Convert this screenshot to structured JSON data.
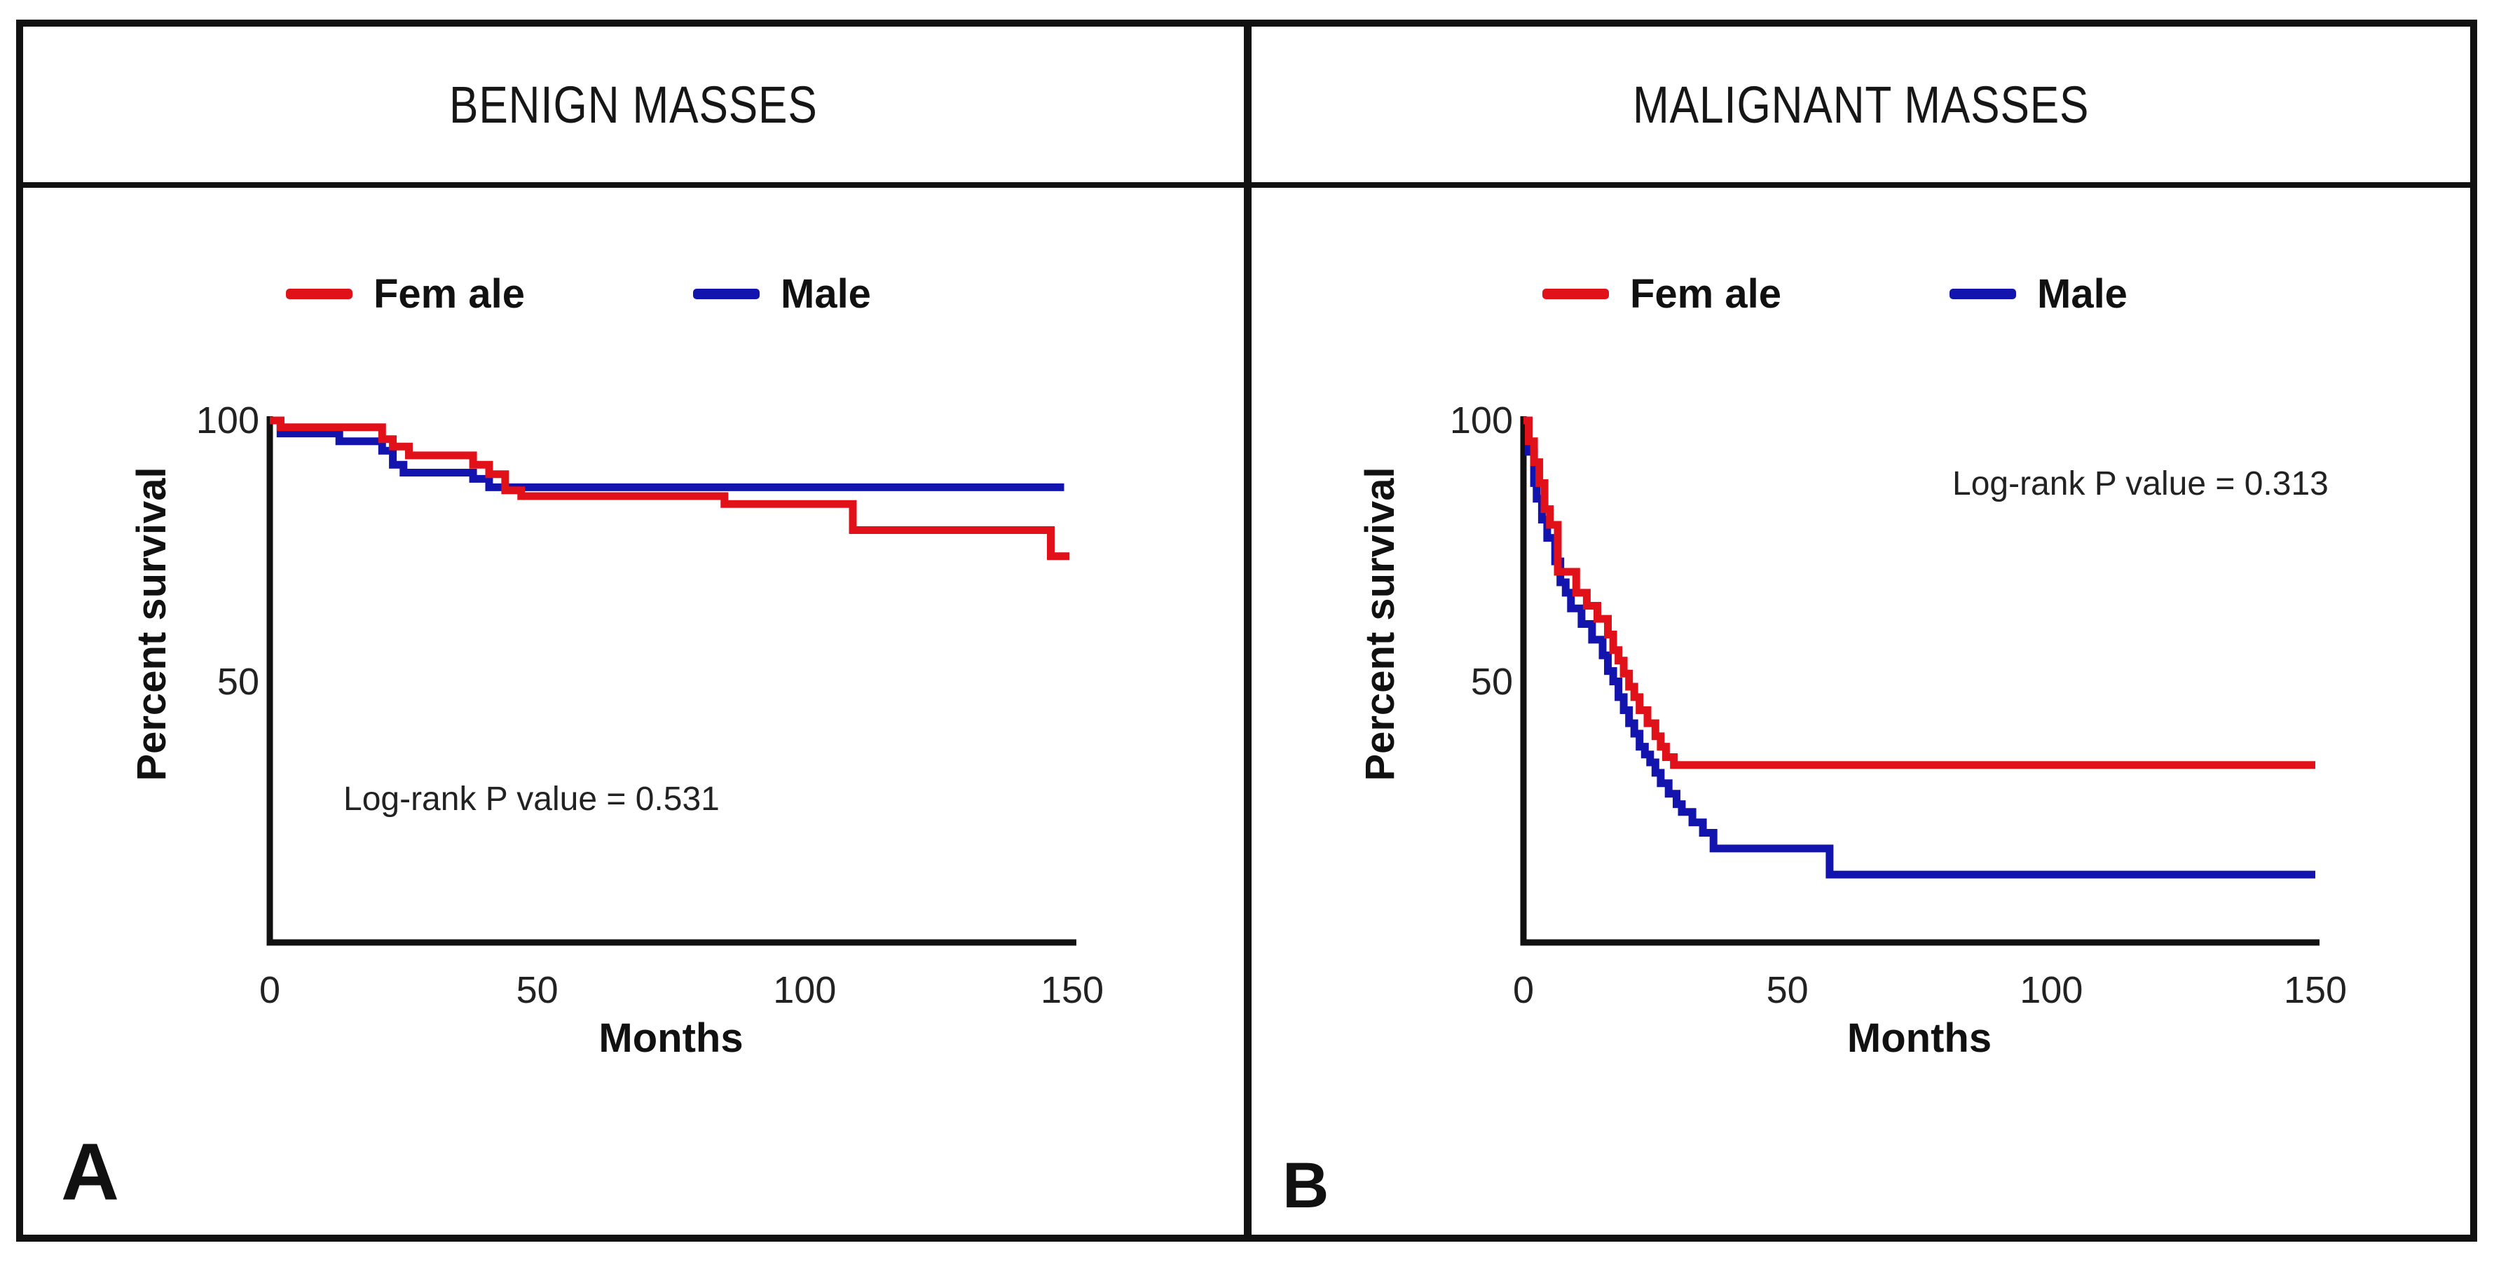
{
  "figure": {
    "type": "kaplan-meier-survival-figure",
    "background": "#ffffff",
    "border_color": "#111111",
    "curve_red": "#e01119",
    "curve_blue": "#1313ad"
  },
  "panels": [
    {
      "corner_label": "A",
      "title": "BENIGN MASSES",
      "legend": [
        {
          "label": "Fem ale",
          "color": "#e01119"
        },
        {
          "label": "Male",
          "color": "#1313ad"
        }
      ],
      "annotation": "Log-rank P value = 0.531",
      "xlabel": "Months",
      "ylabel": "Percent survival"
    },
    {
      "corner_label": "B",
      "title": "MALIGNANT MASSES",
      "legend": [
        {
          "label": "Fem ale",
          "color": "#e01119"
        },
        {
          "label": "Male",
          "color": "#1313ad"
        }
      ],
      "annotation": "Log-rank P value = 0.313",
      "xlabel": "Months",
      "ylabel": "Percent survival"
    }
  ],
  "chart_data": [
    {
      "type": "line",
      "subtype": "kaplan-meier-step",
      "title": "BENIGN MASSES",
      "xlabel": "Months",
      "ylabel": "Percent survival",
      "xlim": [
        0,
        150
      ],
      "ylim": [
        0,
        100
      ],
      "xticks": [
        0,
        50,
        100,
        150
      ],
      "yticks": [
        50,
        100
      ],
      "grid": false,
      "legend_position": "top",
      "annotation": {
        "text": "Log-rank P value = 0.531",
        "position": "lower-left"
      },
      "series": [
        {
          "name": "Fem ale",
          "color": "#e01119",
          "steps": [
            [
              0,
              100
            ],
            [
              2,
              98.7
            ],
            [
              21,
              96.4
            ],
            [
              23,
              95
            ],
            [
              26,
              93.3
            ],
            [
              38,
              91.5
            ],
            [
              41,
              89.7
            ],
            [
              44,
              86.6
            ],
            [
              47,
              85.5
            ],
            [
              85,
              84
            ],
            [
              109,
              79
            ],
            [
              146,
              74
            ],
            [
              149.5,
              74
            ]
          ]
        },
        {
          "name": "Male",
          "color": "#1313ad",
          "steps": [
            [
              0,
              100
            ],
            [
              2,
              97.5
            ],
            [
              13,
              96
            ],
            [
              21,
              94.2
            ],
            [
              23,
              91.5
            ],
            [
              25,
              90
            ],
            [
              38,
              88.8
            ],
            [
              41,
              87.2
            ],
            [
              148.5,
              87.2
            ]
          ]
        }
      ]
    },
    {
      "type": "line",
      "subtype": "kaplan-meier-step",
      "title": "MALIGNANT MASSES",
      "xlabel": "Months",
      "ylabel": "Percent survival",
      "xlim": [
        0,
        150
      ],
      "ylim": [
        0,
        100
      ],
      "xticks": [
        0,
        50,
        100,
        150
      ],
      "yticks": [
        50,
        100
      ],
      "grid": false,
      "legend_position": "top",
      "annotation": {
        "text": "Log-rank P value = 0.313",
        "position": "upper-right"
      },
      "series": [
        {
          "name": "Fem ale",
          "color": "#e01119",
          "steps": [
            [
              0,
              100
            ],
            [
              1,
              96
            ],
            [
              2,
              92
            ],
            [
              3,
              88
            ],
            [
              4,
              83
            ],
            [
              5,
              80
            ],
            [
              6.5,
              71
            ],
            [
              10,
              67
            ],
            [
              12,
              64.5
            ],
            [
              14,
              62
            ],
            [
              16,
              59
            ],
            [
              17,
              56
            ],
            [
              18,
              54
            ],
            [
              19,
              51.5
            ],
            [
              20,
              49
            ],
            [
              21,
              47
            ],
            [
              22,
              44.5
            ],
            [
              23.5,
              42
            ],
            [
              25,
              39.5
            ],
            [
              26,
              37.5
            ],
            [
              27,
              35.5
            ],
            [
              28.5,
              34
            ],
            [
              150,
              34
            ]
          ]
        },
        {
          "name": "Male",
          "color": "#1313ad",
          "steps": [
            [
              0,
              100
            ],
            [
              1,
              94
            ],
            [
              2,
              88
            ],
            [
              2.5,
              85
            ],
            [
              3.5,
              81
            ],
            [
              4.5,
              77.5
            ],
            [
              6,
              73
            ],
            [
              7,
              69
            ],
            [
              8,
              67
            ],
            [
              9,
              64
            ],
            [
              11,
              61
            ],
            [
              13,
              58
            ],
            [
              15,
              55
            ],
            [
              16,
              52
            ],
            [
              17,
              50
            ],
            [
              18,
              47
            ],
            [
              19,
              44.5
            ],
            [
              20,
              42
            ],
            [
              21,
              40
            ],
            [
              22,
              37.5
            ],
            [
              23,
              36
            ],
            [
              24,
              34.5
            ],
            [
              25,
              32.5
            ],
            [
              26,
              30.5
            ],
            [
              27.5,
              28.5
            ],
            [
              29,
              26.5
            ],
            [
              30,
              25
            ],
            [
              32,
              23
            ],
            [
              34,
              21
            ],
            [
              36,
              18
            ],
            [
              58,
              13
            ],
            [
              150,
              13
            ]
          ]
        }
      ]
    }
  ]
}
